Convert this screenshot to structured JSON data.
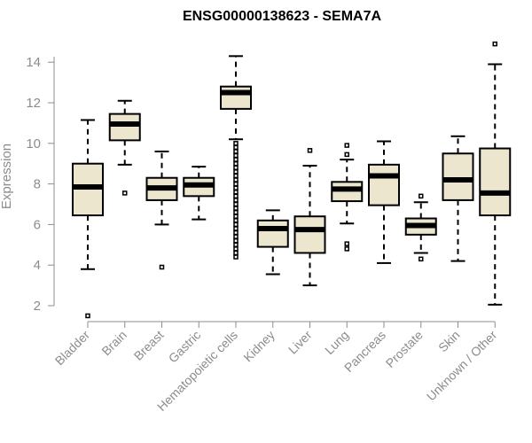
{
  "chart_data": {
    "type": "boxplot",
    "title": "ENSG00000138623 - SEMA7A",
    "xlabel": "",
    "ylabel": "Expression",
    "ylim": [
      1.2,
      15.2
    ],
    "yticks": [
      2,
      4,
      6,
      8,
      10,
      12,
      14
    ],
    "grid": false,
    "box_color": "#ede6cf",
    "series": [
      {
        "name": "Bladder",
        "q1": 6.45,
        "median": 7.85,
        "q3": 9.0,
        "whisker_low": 3.8,
        "whisker_high": 11.15,
        "outliers": [
          1.5
        ]
      },
      {
        "name": "Brain",
        "q1": 10.15,
        "median": 10.95,
        "q3": 11.45,
        "whisker_low": 8.95,
        "whisker_high": 12.1,
        "outliers": [
          7.55
        ]
      },
      {
        "name": "Breast",
        "q1": 7.2,
        "median": 7.8,
        "q3": 8.3,
        "whisker_low": 6.0,
        "whisker_high": 9.6,
        "outliers": [
          3.9
        ]
      },
      {
        "name": "Gastric",
        "q1": 7.4,
        "median": 7.95,
        "q3": 8.3,
        "whisker_low": 6.25,
        "whisker_high": 8.85,
        "outliers": []
      },
      {
        "name": "Hematopoietic cells",
        "q1": 11.7,
        "median": 12.5,
        "q3": 12.8,
        "whisker_low": 10.2,
        "whisker_high": 14.3,
        "outliers": [
          10.0,
          9.8,
          9.6,
          9.4,
          9.2,
          9.0,
          8.8,
          8.6,
          8.4,
          8.2,
          8.0,
          7.8,
          7.6,
          7.4,
          7.2,
          7.0,
          6.8,
          6.6,
          6.4,
          6.2,
          6.0,
          5.8,
          5.6,
          5.4,
          5.2,
          5.0,
          4.8,
          4.6,
          4.4
        ]
      },
      {
        "name": "Kidney",
        "q1": 4.9,
        "median": 5.8,
        "q3": 6.2,
        "whisker_low": 3.55,
        "whisker_high": 6.7,
        "outliers": []
      },
      {
        "name": "Liver",
        "q1": 4.6,
        "median": 5.75,
        "q3": 6.4,
        "whisker_low": 3.0,
        "whisker_high": 8.9,
        "outliers": [
          9.65
        ]
      },
      {
        "name": "Lung",
        "q1": 7.15,
        "median": 7.75,
        "q3": 8.1,
        "whisker_low": 6.05,
        "whisker_high": 9.2,
        "outliers": [
          9.9,
          9.45,
          5.05,
          4.8
        ]
      },
      {
        "name": "Pancreas",
        "q1": 6.95,
        "median": 8.4,
        "q3": 8.95,
        "whisker_low": 4.1,
        "whisker_high": 10.1,
        "outliers": []
      },
      {
        "name": "Prostate",
        "q1": 5.5,
        "median": 5.95,
        "q3": 6.3,
        "whisker_low": 4.6,
        "whisker_high": 7.1,
        "outliers": [
          7.4,
          4.3
        ]
      },
      {
        "name": "Skin",
        "q1": 7.2,
        "median": 8.2,
        "q3": 9.5,
        "whisker_low": 4.2,
        "whisker_high": 10.35,
        "outliers": []
      },
      {
        "name": "Unknown / Other",
        "q1": 6.45,
        "median": 7.55,
        "q3": 9.75,
        "whisker_low": 2.05,
        "whisker_high": 13.9,
        "outliers": [
          14.9
        ]
      }
    ]
  }
}
